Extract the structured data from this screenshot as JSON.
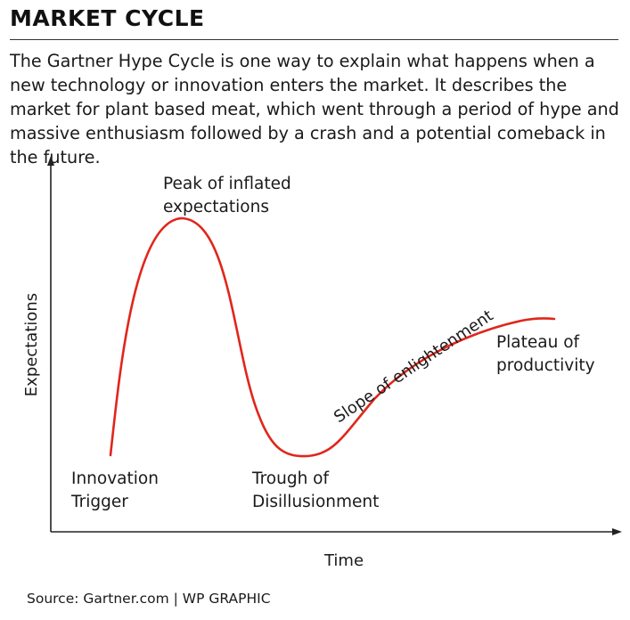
{
  "header": {
    "title": "MARKET CYCLE",
    "description": "The Gartner Hype Cycle is one way to explain what happens when a new technology or innovation enters the market. It describes the market for plant based meat, which went through a period of hype and massive enthusiasm followed by a crash and a potential comeback in the future."
  },
  "diagram": {
    "y_axis_label": "Expectations",
    "x_axis_label": "Time",
    "curve_color": "#e0261b",
    "axis_color": "#222222",
    "phases": {
      "innovation_trigger": [
        "Innovation",
        "Trigger"
      ],
      "peak": [
        "Peak of inflated",
        "expectations"
      ],
      "trough": [
        "Trough of",
        "Disillusionment"
      ],
      "slope": "Slope of enlightenment",
      "plateau": [
        "Plateau of",
        "productivity"
      ]
    }
  },
  "footer": {
    "source": "Source: Gartner.com  |  WP GRAPHIC"
  }
}
